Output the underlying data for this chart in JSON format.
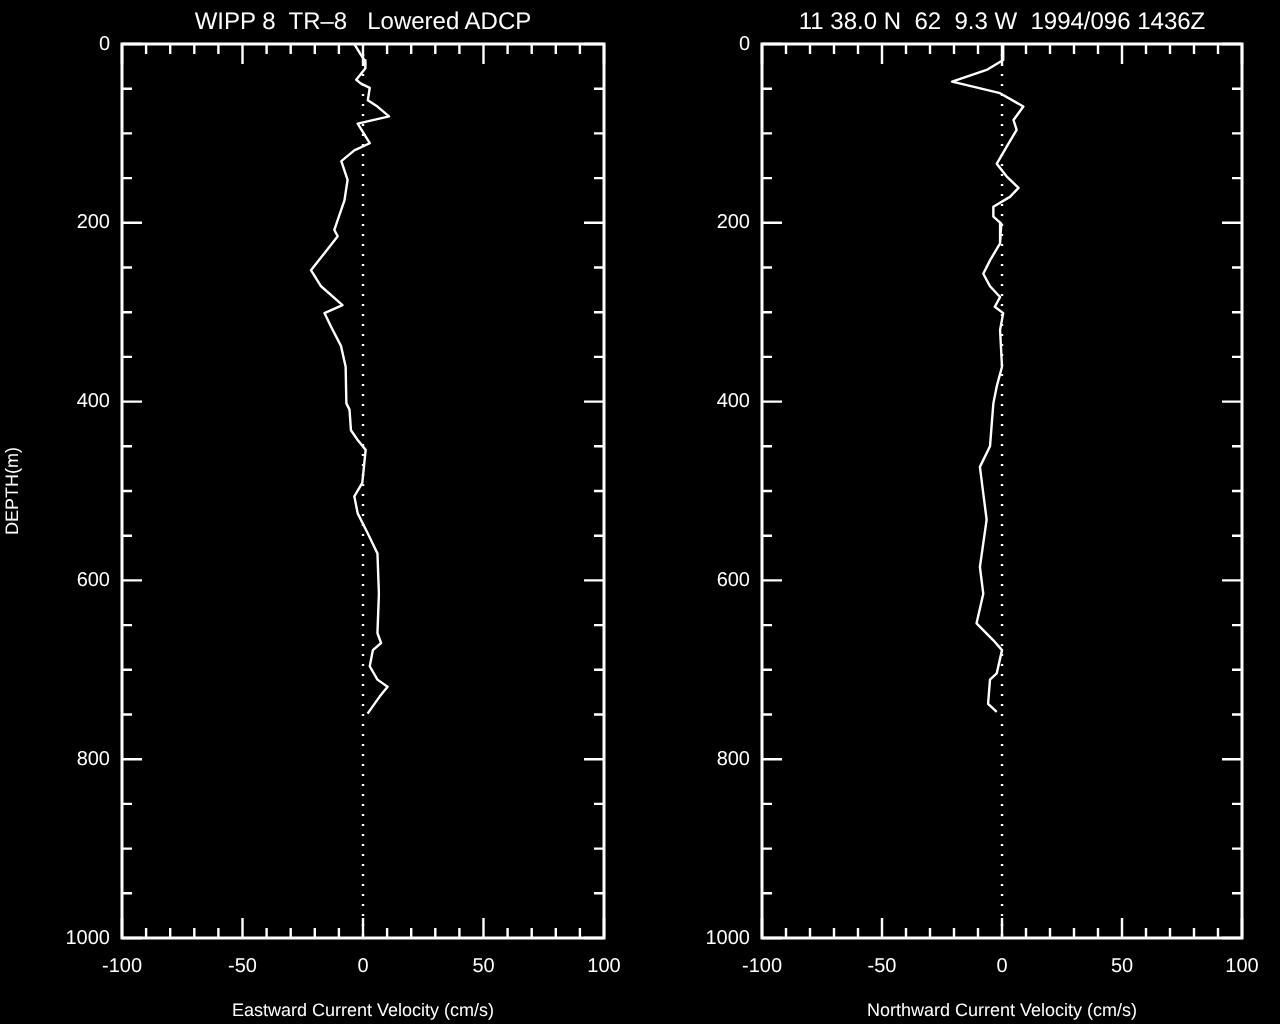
{
  "chart_data": [
    {
      "type": "line",
      "title": "WIPP 8  TR–8   Lowered ADCP",
      "xlabel": "Eastward Current Velocity (cm/s)",
      "ylabel": "DEPTH(m)",
      "xlim": [
        -100,
        100
      ],
      "ylim": [
        1000,
        0
      ],
      "xticks": [
        -100,
        {
          "value": -90,
          "label": null
        },
        {
          "value": -80,
          "label": null
        },
        {
          "value": -70,
          "label": null
        },
        {
          "value": -60,
          "label": null
        },
        -50,
        {
          "value": -40,
          "label": null
        },
        {
          "value": -30,
          "label": null
        },
        {
          "value": -20,
          "label": null
        },
        {
          "value": -10,
          "label": null
        },
        0,
        {
          "value": 10,
          "label": null
        },
        {
          "value": 20,
          "label": null
        },
        {
          "value": 30,
          "label": null
        },
        {
          "value": 40,
          "label": null
        },
        50,
        {
          "value": 60,
          "label": null
        },
        {
          "value": 70,
          "label": null
        },
        {
          "value": 80,
          "label": null
        },
        {
          "value": 90,
          "label": null
        },
        100
      ],
      "yticks": [
        0,
        {
          "value": 50,
          "label": null
        },
        {
          "value": 100,
          "label": null
        },
        {
          "value": 150,
          "label": null
        },
        200,
        {
          "value": 250,
          "label": null
        },
        {
          "value": 300,
          "label": null
        },
        {
          "value": 350,
          "label": null
        },
        400,
        {
          "value": 450,
          "label": null
        },
        {
          "value": 500,
          "label": null
        },
        {
          "value": 550,
          "label": null
        },
        600,
        {
          "value": 650,
          "label": null
        },
        {
          "value": 700,
          "label": null
        },
        {
          "value": 750,
          "label": null
        },
        800,
        {
          "value": 850,
          "label": null
        },
        {
          "value": 900,
          "label": null
        },
        {
          "value": 950,
          "label": null
        },
        1000
      ],
      "grid": false,
      "legend": false,
      "ref_lines": [
        {
          "axis": "x",
          "value": 0,
          "line_style": "dotted",
          "color": "#ffffff"
        }
      ],
      "series": [
        {
          "color": "#ffffff",
          "x": [
            -3.6,
            0.5,
            1,
            -2.8,
            -1,
            2.8,
            2,
            6,
            10.8,
            -2.2,
            2.8,
            -3.6,
            -9,
            -6.4,
            -7.7,
            -11.9,
            -10.5,
            -16,
            -21.6,
            -17.4,
            -8.5,
            -16,
            -13.3,
            -9.1,
            -7.2,
            -6.9,
            -5.6,
            -5,
            -2.2,
            1.1,
            -0.3,
            -3.6,
            -2.2,
            1.9,
            6,
            6.6,
            6,
            7.5,
            4.1,
            2.8,
            6,
            10.2,
            6.9,
            1.9
          ],
          "values": [
            0,
            18,
            27,
            40,
            44,
            49,
            63,
            70,
            81,
            89,
            111,
            119,
            131,
            152,
            175,
            208,
            215,
            234,
            253,
            271,
            292,
            301,
            316,
            338,
            361,
            402,
            409,
            432,
            443,
            454,
            491,
            506,
            525,
            547,
            570,
            615,
            659,
            670,
            678,
            696,
            711,
            719,
            730,
            749
          ]
        }
      ]
    },
    {
      "type": "line",
      "title": "11 38.0 N  62  9.3 W  1994/096 1436Z",
      "xlabel": "Northward Current Velocity (cm/s)",
      "xlim": [
        -100,
        100
      ],
      "ylim": [
        1000,
        0
      ],
      "xticks": [
        -100,
        {
          "value": -90,
          "label": null
        },
        {
          "value": -80,
          "label": null
        },
        {
          "value": -70,
          "label": null
        },
        {
          "value": -60,
          "label": null
        },
        -50,
        {
          "value": -40,
          "label": null
        },
        {
          "value": -30,
          "label": null
        },
        {
          "value": -20,
          "label": null
        },
        {
          "value": -10,
          "label": null
        },
        0,
        {
          "value": 10,
          "label": null
        },
        {
          "value": 20,
          "label": null
        },
        {
          "value": 30,
          "label": null
        },
        {
          "value": 40,
          "label": null
        },
        50,
        {
          "value": 60,
          "label": null
        },
        {
          "value": 70,
          "label": null
        },
        {
          "value": 80,
          "label": null
        },
        {
          "value": 90,
          "label": null
        },
        100
      ],
      "yticks": [
        0,
        {
          "value": 50,
          "label": null
        },
        {
          "value": 100,
          "label": null
        },
        {
          "value": 150,
          "label": null
        },
        200,
        {
          "value": 250,
          "label": null
        },
        {
          "value": 300,
          "label": null
        },
        {
          "value": 350,
          "label": null
        },
        400,
        {
          "value": 450,
          "label": null
        },
        {
          "value": 500,
          "label": null
        },
        {
          "value": 550,
          "label": null
        },
        600,
        {
          "value": 650,
          "label": null
        },
        {
          "value": 700,
          "label": null
        },
        {
          "value": 750,
          "label": null
        },
        800,
        {
          "value": 850,
          "label": null
        },
        {
          "value": 900,
          "label": null
        },
        {
          "value": 950,
          "label": null
        },
        1000
      ],
      "grid": false,
      "legend": false,
      "ref_lines": [
        {
          "axis": "x",
          "value": 0,
          "line_style": "dotted",
          "color": "#ffffff"
        }
      ],
      "series": [
        {
          "color": "#ffffff",
          "x": [
            0.5,
            0.5,
            -6.4,
            -20.8,
            -14.7,
            -0.8,
            8.9,
            4.8,
            6.1,
            1.9,
            -2.2,
            1.9,
            6.9,
            3.3,
            -3.6,
            -3.6,
            -0.3,
            -0.8,
            -5,
            -7.8,
            -5,
            -0.8,
            -3,
            0.5,
            -0.8,
            0,
            -2.2,
            -3.6,
            -5,
            -9.2,
            -7.8,
            -6.4,
            -9.2,
            -7.8,
            -10.6,
            -3.6,
            0,
            -2.2,
            -5,
            -5.8,
            -2.2
          ],
          "values": [
            0,
            18,
            29,
            42,
            46,
            55,
            70,
            85,
            96,
            115,
            134,
            148,
            161,
            171,
            182,
            193,
            201,
            223,
            242,
            257,
            271,
            283,
            294,
            301,
            320,
            361,
            383,
            402,
            450,
            473,
            503,
            532,
            585,
            615,
            648,
            667,
            678,
            704,
            711,
            738,
            747
          ]
        }
      ]
    }
  ]
}
